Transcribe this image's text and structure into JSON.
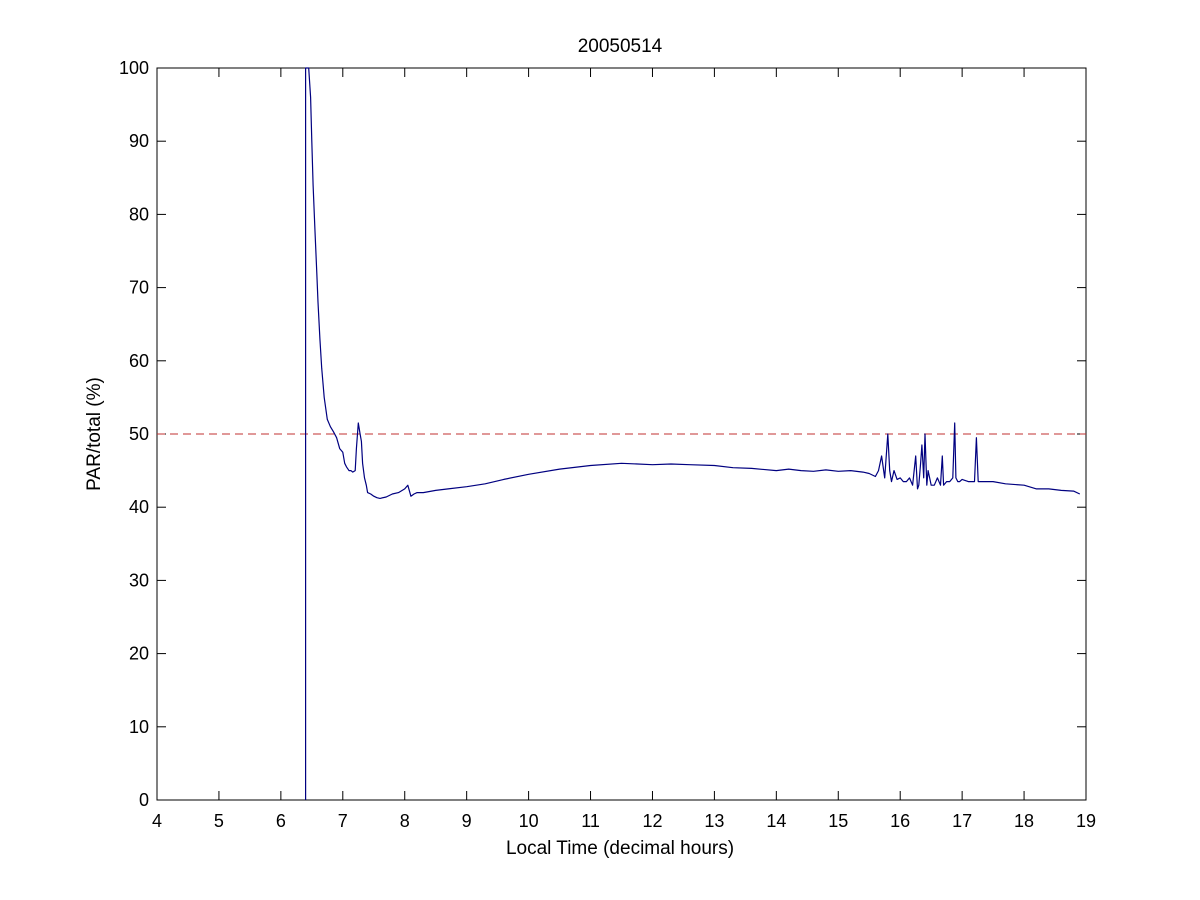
{
  "chart_data": {
    "type": "line",
    "title": "20050514",
    "xlabel": "Local Time (decimal hours)",
    "ylabel": "PAR/total (%)",
    "xlim": [
      4,
      19
    ],
    "ylim": [
      0,
      100
    ],
    "xticks": [
      "4",
      "5",
      "6",
      "7",
      "8",
      "9",
      "10",
      "11",
      "12",
      "13",
      "14",
      "15",
      "16",
      "17",
      "18",
      "19"
    ],
    "yticks": [
      "0",
      "10",
      "20",
      "30",
      "40",
      "50",
      "60",
      "70",
      "80",
      "90",
      "100"
    ],
    "grid": false,
    "legend": "none",
    "series": [
      {
        "color": "#000080",
        "x": [
          6.4,
          6.4,
          6.4,
          6.42,
          6.45,
          6.48,
          6.5,
          6.52,
          6.55,
          6.58,
          6.6,
          6.63,
          6.66,
          6.7,
          6.75,
          6.8,
          6.85,
          6.9,
          6.95,
          7.0,
          7.03,
          7.06,
          7.1,
          7.13,
          7.16,
          7.2,
          7.22,
          7.25,
          7.28,
          7.3,
          7.32,
          7.35,
          7.38,
          7.4,
          7.45,
          7.5,
          7.55,
          7.6,
          7.7,
          7.8,
          7.9,
          8.0,
          8.05,
          8.1,
          8.15,
          8.2,
          8.3,
          8.5,
          8.7,
          9.0,
          9.3,
          9.6,
          10.0,
          10.5,
          11.0,
          11.5,
          12.0,
          12.3,
          12.6,
          13.0,
          13.3,
          13.6,
          14.0,
          14.2,
          14.4,
          14.6,
          14.8,
          15.0,
          15.2,
          15.4,
          15.5,
          15.6,
          15.65,
          15.7,
          15.75,
          15.8,
          15.83,
          15.86,
          15.9,
          15.95,
          16.0,
          16.05,
          16.1,
          16.15,
          16.2,
          16.25,
          16.28,
          16.3,
          16.33,
          16.35,
          16.38,
          16.4,
          16.43,
          16.45,
          16.5,
          16.55,
          16.6,
          16.65,
          16.68,
          16.7,
          16.75,
          16.8,
          16.85,
          16.88,
          16.9,
          16.93,
          16.96,
          17.0,
          17.1,
          17.2,
          17.23,
          17.26,
          17.3,
          17.5,
          17.7,
          18.0,
          18.2,
          18.4,
          18.6,
          18.8,
          18.9
        ],
        "y": [
          0,
          100,
          100,
          100,
          100,
          96,
          90,
          84,
          78,
          72,
          68,
          63,
          59,
          55,
          52,
          51,
          50.3,
          49.5,
          48,
          47.5,
          46,
          45.5,
          45,
          45,
          44.8,
          45,
          48,
          51.5,
          50,
          49,
          46,
          44,
          43,
          42,
          41.8,
          41.5,
          41.3,
          41.2,
          41.4,
          41.8,
          42,
          42.5,
          43,
          41.5,
          41.8,
          42,
          42,
          42.3,
          42.5,
          42.8,
          43.2,
          43.8,
          44.5,
          45.2,
          45.7,
          46,
          45.8,
          45.9,
          45.8,
          45.7,
          45.4,
          45.3,
          45,
          45.2,
          45,
          44.9,
          45.1,
          44.9,
          45,
          44.8,
          44.6,
          44.2,
          45,
          47,
          44,
          50,
          45,
          43.5,
          45,
          43.8,
          44,
          43.5,
          43.5,
          44,
          43,
          47,
          42.5,
          43,
          46,
          48.5,
          44,
          50,
          43,
          45,
          43,
          43,
          44,
          43,
          47,
          43,
          43.5,
          43.5,
          44,
          51.5,
          44,
          43.5,
          43.5,
          43.8,
          43.5,
          43.5,
          49.5,
          43.5,
          43.5,
          43.5,
          43.2,
          43,
          42.5,
          42.5,
          42.3,
          42.2,
          41.8
        ]
      }
    ],
    "reference_line": {
      "y": 50,
      "color": "#c03030",
      "style": "dashed"
    }
  }
}
